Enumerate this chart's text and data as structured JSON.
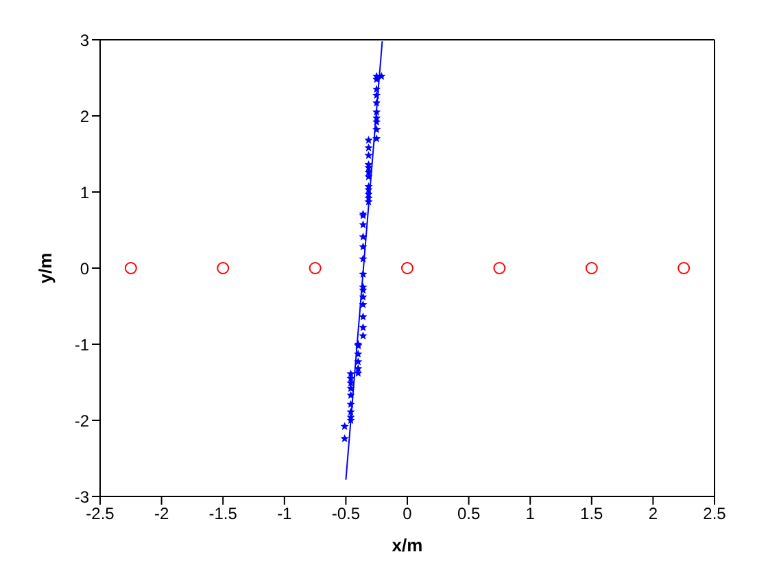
{
  "chart_data": {
    "type": "scatter",
    "xlabel": "x/m",
    "ylabel": "y/m",
    "xlim": [
      -2.5,
      2.5
    ],
    "ylim": [
      -3,
      3
    ],
    "xticks": [
      -2.5,
      -2,
      -1.5,
      -1,
      -0.5,
      0,
      0.5,
      1,
      1.5,
      2,
      2.5
    ],
    "yticks": [
      -3,
      -2,
      -1,
      0,
      1,
      2,
      3
    ],
    "series": [
      {
        "marker": "circle",
        "color": "#ff0000",
        "x": [
          -2.25,
          -1.5,
          -0.75,
          0,
          0.75,
          1.5,
          2.25
        ],
        "values": [
          0,
          0,
          0,
          0,
          0,
          0,
          0
        ]
      },
      {
        "marker": "star",
        "color": "#0000ff",
        "x": [
          -0.25,
          -0.25,
          -0.25,
          -0.25,
          -0.25,
          -0.25,
          -0.25,
          -0.25,
          -0.25,
          -0.25,
          -0.21,
          -0.315,
          -0.315,
          -0.315,
          -0.315,
          -0.315,
          -0.315,
          -0.315,
          -0.315,
          -0.315,
          -0.315,
          -0.315,
          -0.315,
          -0.36,
          -0.36,
          -0.36,
          -0.36,
          -0.36,
          -0.36,
          -0.36,
          -0.36,
          -0.36,
          -0.36,
          -0.36,
          -0.36,
          -0.36,
          -0.36,
          -0.4,
          -0.4,
          -0.4,
          -0.4,
          -0.4,
          -0.4,
          -0.46,
          -0.46,
          -0.46,
          -0.46,
          -0.46,
          -0.46,
          -0.46,
          -0.46,
          -0.46,
          -0.51,
          -0.51
        ],
        "values": [
          2.52,
          2.48,
          2.35,
          2.27,
          2.17,
          2.05,
          1.97,
          1.92,
          1.82,
          1.7,
          2.52,
          1.68,
          1.58,
          1.48,
          1.36,
          1.32,
          1.26,
          1.2,
          1.07,
          1.03,
          0.97,
          0.92,
          0.87,
          0.71,
          0.69,
          0.57,
          0.41,
          0.28,
          0.12,
          -0.08,
          -0.25,
          -0.29,
          -0.38,
          -0.48,
          -0.64,
          -0.78,
          -0.89,
          -1,
          -1.02,
          -1.13,
          -1.23,
          -1.32,
          -1.38,
          -1.39,
          -1.45,
          -1.51,
          -1.58,
          -1.67,
          -1.79,
          -1.89,
          -1.96,
          -2,
          -2.08,
          -2.24
        ]
      },
      {
        "type": "line",
        "line_style": "solid",
        "color": "#0000ff",
        "x": [
          -0.5,
          -0.204
        ],
        "values": [
          -2.78,
          2.98
        ]
      }
    ]
  }
}
